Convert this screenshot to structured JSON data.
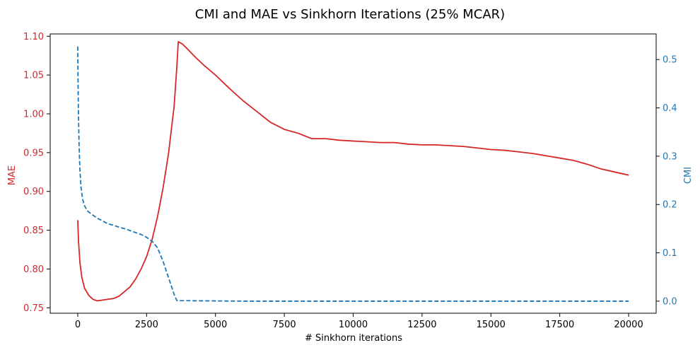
{
  "chart_data": {
    "type": "line",
    "title": "CMI and MAE vs Sinkhorn Iterations (25% MCAR)",
    "xlabel": "# Sinkhorn iterations",
    "ylabel_left": "MAE",
    "ylabel_right": "CMI",
    "xlim": [
      -1000,
      21000
    ],
    "ylim_left": [
      0.743,
      1.103
    ],
    "ylim_right": [
      -0.025,
      0.553
    ],
    "x_ticks": [
      0,
      2500,
      5000,
      7500,
      10000,
      12500,
      15000,
      17500,
      20000
    ],
    "x_tick_labels": [
      "0",
      "2500",
      "5000",
      "7500",
      "10000",
      "12500",
      "15000",
      "17500",
      "20000"
    ],
    "y_left_ticks": [
      0.75,
      0.8,
      0.85,
      0.9,
      0.95,
      1.0,
      1.05,
      1.1
    ],
    "y_left_tick_labels": [
      "0.75",
      "0.80",
      "0.85",
      "0.90",
      "0.95",
      "1.00",
      "1.05",
      "1.10"
    ],
    "y_right_ticks": [
      0.0,
      0.1,
      0.2,
      0.3,
      0.4,
      0.5
    ],
    "y_right_tick_labels": [
      "0.0",
      "0.1",
      "0.2",
      "0.3",
      "0.4",
      "0.5"
    ],
    "grid": false,
    "series": [
      {
        "name": "MAE",
        "axis": "left",
        "color": "#d62728",
        "style": "solid",
        "x": [
          0,
          30,
          80,
          150,
          250,
          400,
          550,
          700,
          900,
          1100,
          1300,
          1500,
          1700,
          1900,
          2100,
          2300,
          2500,
          2700,
          2900,
          3100,
          3300,
          3500,
          3600,
          3650,
          3800,
          4000,
          4300,
          4600,
          5000,
          5500,
          6000,
          6500,
          7000,
          7500,
          8000,
          8500,
          9000,
          9500,
          10000,
          10500,
          11000,
          11500,
          12000,
          12500,
          13000,
          13500,
          14000,
          14500,
          15000,
          15500,
          16000,
          16500,
          17000,
          17500,
          18000,
          18500,
          19000,
          19500,
          20000
        ],
        "y": [
          0.863,
          0.835,
          0.808,
          0.789,
          0.775,
          0.766,
          0.761,
          0.759,
          0.76,
          0.761,
          0.762,
          0.765,
          0.771,
          0.777,
          0.787,
          0.8,
          0.816,
          0.838,
          0.868,
          0.905,
          0.95,
          1.01,
          1.062,
          1.093,
          1.09,
          1.083,
          1.072,
          1.062,
          1.05,
          1.033,
          1.017,
          1.003,
          0.989,
          0.98,
          0.975,
          0.968,
          0.968,
          0.966,
          0.965,
          0.964,
          0.963,
          0.963,
          0.961,
          0.96,
          0.96,
          0.959,
          0.958,
          0.956,
          0.954,
          0.953,
          0.951,
          0.949,
          0.946,
          0.943,
          0.94,
          0.935,
          0.929,
          0.925,
          0.921
        ]
      },
      {
        "name": "CMI",
        "axis": "right",
        "color": "#1f77b4",
        "style": "dashed",
        "x": [
          0,
          10,
          25,
          50,
          80,
          120,
          180,
          250,
          350,
          500,
          700,
          900,
          1100,
          1300,
          1500,
          1700,
          1900,
          2100,
          2300,
          2500,
          2700,
          2900,
          3100,
          3300,
          3500,
          3600,
          3700,
          4000,
          6000,
          8000,
          10000,
          12000,
          14000,
          16000,
          18000,
          20000
        ],
        "y": [
          0.527,
          0.46,
          0.39,
          0.32,
          0.27,
          0.235,
          0.21,
          0.197,
          0.187,
          0.18,
          0.172,
          0.166,
          0.16,
          0.157,
          0.153,
          0.15,
          0.146,
          0.142,
          0.138,
          0.132,
          0.124,
          0.11,
          0.082,
          0.048,
          0.014,
          0.001,
          0.001,
          0.001,
          0.0,
          0.0,
          0.0,
          0.0,
          0.0,
          0.0,
          0.0,
          0.0
        ]
      }
    ]
  }
}
